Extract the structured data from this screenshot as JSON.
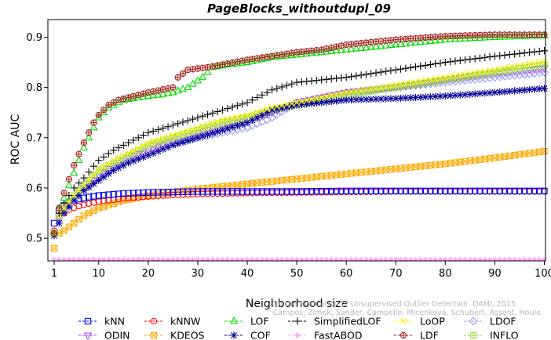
{
  "chart_data": {
    "type": "line",
    "title": "PageBlocks_withoutdupl_09",
    "xlabel": "Neighborhood size",
    "ylabel": "ROC AUC",
    "xlim": [
      1,
      100
    ],
    "ylim": [
      0.455,
      0.935
    ],
    "xticks": [
      1,
      10,
      20,
      30,
      40,
      50,
      60,
      70,
      80,
      90,
      100
    ],
    "yticks": [
      0.5,
      0.6,
      0.7,
      0.8,
      0.9
    ],
    "grid": false,
    "legend_position": "bottom",
    "watermark": [
      "Campos, Zimek, Sander, Campello, Micenková, Schubert, Assent, Houle",
      "On the Evaluation of Unsupervised Outlier Detection. DAMI, 2015."
    ],
    "series": [
      {
        "name": "kNN",
        "color": "#0000ff",
        "marker": "square",
        "points": [
          [
            1,
            0.53
          ],
          [
            2,
            0.555
          ],
          [
            3,
            0.565
          ],
          [
            4,
            0.572
          ],
          [
            6,
            0.578
          ],
          [
            8,
            0.582
          ],
          [
            10,
            0.585
          ],
          [
            15,
            0.589
          ],
          [
            20,
            0.591
          ],
          [
            25,
            0.592
          ],
          [
            30,
            0.593
          ],
          [
            40,
            0.593
          ],
          [
            50,
            0.593
          ],
          [
            60,
            0.594
          ],
          [
            70,
            0.594
          ],
          [
            80,
            0.594
          ],
          [
            90,
            0.594
          ],
          [
            100,
            0.594
          ]
        ]
      },
      {
        "name": "kNNW",
        "color": "#ff0000",
        "marker": "circle",
        "points": [
          [
            1,
            0.515
          ],
          [
            2,
            0.54
          ],
          [
            3,
            0.55
          ],
          [
            4,
            0.557
          ],
          [
            6,
            0.564
          ],
          [
            8,
            0.569
          ],
          [
            10,
            0.573
          ],
          [
            15,
            0.579
          ],
          [
            20,
            0.583
          ],
          [
            25,
            0.586
          ],
          [
            30,
            0.588
          ],
          [
            40,
            0.59
          ],
          [
            50,
            0.591
          ],
          [
            60,
            0.592
          ],
          [
            70,
            0.593
          ],
          [
            80,
            0.593
          ],
          [
            90,
            0.593
          ],
          [
            100,
            0.593
          ]
        ]
      },
      {
        "name": "LOF",
        "color": "#00dd00",
        "marker": "triangle-up",
        "points": [
          [
            1,
            0.51
          ],
          [
            2,
            0.56
          ],
          [
            3,
            0.58
          ],
          [
            5,
            0.63
          ],
          [
            7,
            0.68
          ],
          [
            9,
            0.72
          ],
          [
            10,
            0.74
          ],
          [
            12,
            0.76
          ],
          [
            15,
            0.775
          ],
          [
            18,
            0.78
          ],
          [
            22,
            0.785
          ],
          [
            25,
            0.79
          ],
          [
            28,
            0.8
          ],
          [
            31,
            0.82
          ],
          [
            33,
            0.84
          ],
          [
            36,
            0.845
          ],
          [
            40,
            0.85
          ],
          [
            45,
            0.86
          ],
          [
            50,
            0.865
          ],
          [
            55,
            0.87
          ],
          [
            60,
            0.875
          ],
          [
            70,
            0.885
          ],
          [
            80,
            0.895
          ],
          [
            90,
            0.9
          ],
          [
            100,
            0.903
          ]
        ]
      },
      {
        "name": "SimplifiedLOF",
        "color": "#000000",
        "marker": "plus",
        "points": [
          [
            1,
            0.51
          ],
          [
            2,
            0.55
          ],
          [
            3,
            0.57
          ],
          [
            5,
            0.6
          ],
          [
            7,
            0.62
          ],
          [
            10,
            0.655
          ],
          [
            13,
            0.675
          ],
          [
            16,
            0.69
          ],
          [
            20,
            0.71
          ],
          [
            25,
            0.725
          ],
          [
            30,
            0.74
          ],
          [
            35,
            0.755
          ],
          [
            40,
            0.77
          ],
          [
            45,
            0.795
          ],
          [
            50,
            0.81
          ],
          [
            55,
            0.815
          ],
          [
            60,
            0.82
          ],
          [
            70,
            0.835
          ],
          [
            80,
            0.85
          ],
          [
            90,
            0.862
          ],
          [
            100,
            0.873
          ]
        ]
      },
      {
        "name": "LoOP",
        "color": "#ffee00",
        "marker": "x",
        "points": [
          [
            1,
            0.51
          ],
          [
            2,
            0.545
          ],
          [
            3,
            0.56
          ],
          [
            5,
            0.585
          ],
          [
            7,
            0.605
          ],
          [
            10,
            0.635
          ],
          [
            13,
            0.655
          ],
          [
            16,
            0.67
          ],
          [
            20,
            0.69
          ],
          [
            25,
            0.705
          ],
          [
            30,
            0.72
          ],
          [
            35,
            0.735
          ],
          [
            40,
            0.745
          ],
          [
            45,
            0.76
          ],
          [
            50,
            0.77
          ],
          [
            55,
            0.78
          ],
          [
            60,
            0.79
          ],
          [
            70,
            0.805
          ],
          [
            80,
            0.82
          ],
          [
            90,
            0.835
          ],
          [
            100,
            0.852
          ]
        ]
      },
      {
        "name": "LDOF",
        "color": "#9999ff",
        "marker": "diamond",
        "points": [
          [
            1,
            0.51
          ],
          [
            2,
            0.54
          ],
          [
            3,
            0.555
          ],
          [
            5,
            0.575
          ],
          [
            7,
            0.595
          ],
          [
            10,
            0.62
          ],
          [
            13,
            0.64
          ],
          [
            16,
            0.655
          ],
          [
            20,
            0.67
          ],
          [
            25,
            0.69
          ],
          [
            30,
            0.7
          ],
          [
            35,
            0.71
          ],
          [
            40,
            0.72
          ],
          [
            45,
            0.74
          ],
          [
            50,
            0.77
          ],
          [
            55,
            0.78
          ],
          [
            60,
            0.79
          ],
          [
            70,
            0.8
          ],
          [
            80,
            0.81
          ],
          [
            90,
            0.82
          ],
          [
            100,
            0.83
          ]
        ]
      },
      {
        "name": "ODIN",
        "color": "#aa44ee",
        "marker": "triangle-down",
        "points": [
          [
            1,
            0.51
          ],
          [
            2,
            0.54
          ],
          [
            3,
            0.555
          ],
          [
            5,
            0.58
          ],
          [
            7,
            0.6
          ],
          [
            10,
            0.625
          ],
          [
            13,
            0.645
          ],
          [
            16,
            0.66
          ],
          [
            20,
            0.675
          ],
          [
            25,
            0.695
          ],
          [
            30,
            0.71
          ],
          [
            35,
            0.725
          ],
          [
            40,
            0.735
          ],
          [
            45,
            0.75
          ],
          [
            50,
            0.77
          ],
          [
            55,
            0.78
          ],
          [
            60,
            0.79
          ],
          [
            70,
            0.8
          ],
          [
            80,
            0.815
          ],
          [
            90,
            0.828
          ],
          [
            100,
            0.838
          ]
        ]
      },
      {
        "name": "KDEOS",
        "color": "#ffaa00",
        "marker": "square-x",
        "points": [
          [
            1,
            0.48
          ],
          [
            2,
            0.51
          ],
          [
            3,
            0.515
          ],
          [
            5,
            0.53
          ],
          [
            7,
            0.545
          ],
          [
            10,
            0.56
          ],
          [
            15,
            0.575
          ],
          [
            20,
            0.585
          ],
          [
            25,
            0.592
          ],
          [
            30,
            0.598
          ],
          [
            40,
            0.608
          ],
          [
            50,
            0.618
          ],
          [
            60,
            0.628
          ],
          [
            70,
            0.638
          ],
          [
            80,
            0.648
          ],
          [
            90,
            0.66
          ],
          [
            100,
            0.673
          ]
        ]
      },
      {
        "name": "COF",
        "color": "#000099",
        "marker": "asterisk",
        "points": [
          [
            1,
            0.505
          ],
          [
            2,
            0.53
          ],
          [
            3,
            0.55
          ],
          [
            5,
            0.575
          ],
          [
            7,
            0.595
          ],
          [
            10,
            0.615
          ],
          [
            13,
            0.635
          ],
          [
            16,
            0.65
          ],
          [
            20,
            0.665
          ],
          [
            25,
            0.685
          ],
          [
            30,
            0.7
          ],
          [
            35,
            0.715
          ],
          [
            40,
            0.73
          ],
          [
            45,
            0.755
          ],
          [
            50,
            0.765
          ],
          [
            55,
            0.77
          ],
          [
            60,
            0.775
          ],
          [
            70,
            0.778
          ],
          [
            80,
            0.783
          ],
          [
            90,
            0.79
          ],
          [
            100,
            0.798
          ]
        ]
      },
      {
        "name": "FastABOD",
        "color": "#ffaaff",
        "marker": "diamond-filled",
        "points": [
          [
            1,
            0.458
          ],
          [
            100,
            0.458
          ]
        ]
      },
      {
        "name": "LDF",
        "color": "#aa2222",
        "marker": "circle-plus",
        "points": [
          [
            1,
            0.51
          ],
          [
            2,
            0.56
          ],
          [
            3,
            0.59
          ],
          [
            5,
            0.645
          ],
          [
            7,
            0.69
          ],
          [
            9,
            0.73
          ],
          [
            10,
            0.745
          ],
          [
            12,
            0.765
          ],
          [
            14,
            0.775
          ],
          [
            16,
            0.78
          ],
          [
            20,
            0.79
          ],
          [
            25,
            0.8
          ],
          [
            26,
            0.82
          ],
          [
            28,
            0.835
          ],
          [
            32,
            0.84
          ],
          [
            40,
            0.855
          ],
          [
            50,
            0.87
          ],
          [
            55,
            0.875
          ],
          [
            60,
            0.885
          ],
          [
            70,
            0.895
          ],
          [
            80,
            0.902
          ],
          [
            90,
            0.905
          ],
          [
            100,
            0.905
          ]
        ]
      },
      {
        "name": "INFLO",
        "color": "#99dd44",
        "marker": "square-cross",
        "points": [
          [
            1,
            0.51
          ],
          [
            2,
            0.545
          ],
          [
            3,
            0.56
          ],
          [
            5,
            0.585
          ],
          [
            7,
            0.605
          ],
          [
            10,
            0.635
          ],
          [
            13,
            0.65
          ],
          [
            16,
            0.665
          ],
          [
            20,
            0.685
          ],
          [
            25,
            0.7
          ],
          [
            30,
            0.715
          ],
          [
            35,
            0.73
          ],
          [
            40,
            0.74
          ],
          [
            45,
            0.755
          ],
          [
            50,
            0.765
          ],
          [
            55,
            0.775
          ],
          [
            60,
            0.785
          ],
          [
            70,
            0.8
          ],
          [
            80,
            0.815
          ],
          [
            90,
            0.83
          ],
          [
            100,
            0.845
          ]
        ]
      }
    ]
  }
}
